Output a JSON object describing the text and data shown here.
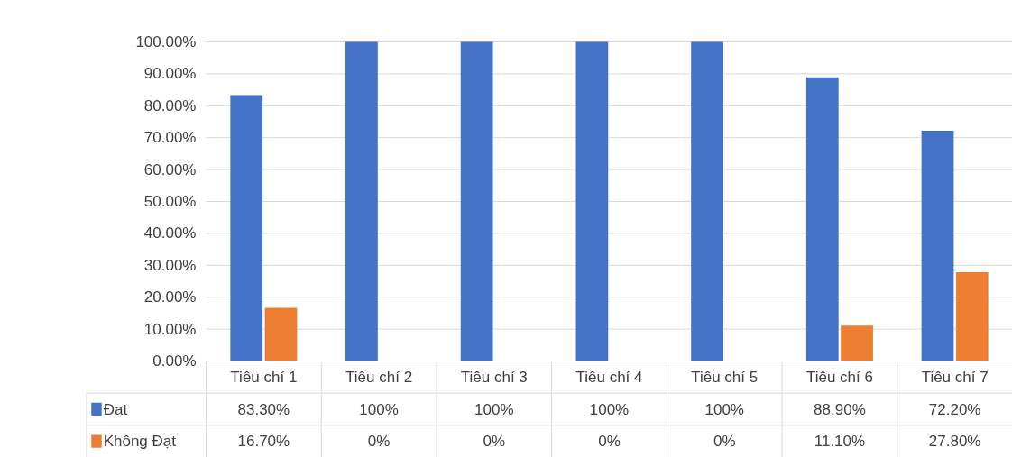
{
  "chart_data": {
    "type": "bar",
    "categories": [
      "Tiêu chí 1",
      "Tiêu chí 2",
      "Tiêu chí 3",
      "Tiêu chí 4",
      "Tiêu chí 5",
      "Tiêu chí 6",
      "Tiêu chí 7"
    ],
    "series": [
      {
        "name": "Đạt",
        "color": "#4472c4",
        "values": [
          83.3,
          100,
          100,
          100,
          100,
          88.9,
          72.2
        ],
        "value_labels": [
          "83.30%",
          "100%",
          "100%",
          "100%",
          "100%",
          "88.90%",
          "72.20%"
        ]
      },
      {
        "name": "Không Đạt",
        "color": "#ed7d31",
        "values": [
          16.7,
          0,
          0,
          0,
          0,
          11.1,
          27.8
        ],
        "value_labels": [
          "16.70%",
          "0%",
          "0%",
          "0%",
          "0%",
          "11.10%",
          "27.80%"
        ]
      }
    ],
    "ylim": [
      0,
      100
    ],
    "yticks": [
      {
        "value": 0,
        "label": "0.00%"
      },
      {
        "value": 10,
        "label": "10.00%"
      },
      {
        "value": 20,
        "label": "20.00%"
      },
      {
        "value": 30,
        "label": "30.00%"
      },
      {
        "value": 40,
        "label": "40.00%"
      },
      {
        "value": 50,
        "label": "50.00%"
      },
      {
        "value": 60,
        "label": "60.00%"
      },
      {
        "value": 70,
        "label": "70.00%"
      },
      {
        "value": 80,
        "label": "80.00%"
      },
      {
        "value": 90,
        "label": "90.00%"
      },
      {
        "value": 100,
        "label": "100.00%"
      }
    ],
    "grid": "y",
    "legend": "bottom"
  }
}
